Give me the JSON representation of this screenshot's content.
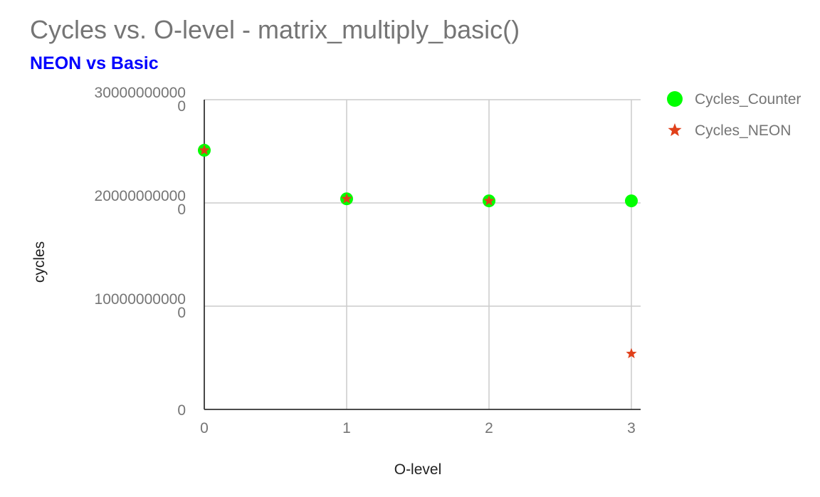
{
  "chart_data": {
    "type": "scatter",
    "title": "Cycles vs. O-level - matrix_multiply_basic()",
    "subtitle": "NEON vs Basic",
    "xlabel": "O-level",
    "ylabel": "cycles",
    "x_ticks": [
      "0",
      "1",
      "2",
      "3"
    ],
    "y_ticks": [
      {
        "value": 0,
        "lines": [
          "0"
        ]
      },
      {
        "value": 100000000000,
        "lines": [
          "10000000000",
          "0"
        ]
      },
      {
        "value": 200000000000,
        "lines": [
          "20000000000",
          "0"
        ]
      },
      {
        "value": 300000000000,
        "lines": [
          "30000000000",
          "0"
        ]
      }
    ],
    "xlim": [
      0,
      3
    ],
    "ylim": [
      0,
      300000000000
    ],
    "grid": true,
    "legend_position": "top-right",
    "colors": {
      "Cycles_Counter": "#00ff00",
      "Cycles_NEON": "#e0401a"
    },
    "series": [
      {
        "name": "Cycles_Counter",
        "marker": "circle",
        "x": [
          0,
          1,
          2,
          3
        ],
        "y": [
          251000000000,
          204000000000,
          202000000000,
          202000000000
        ]
      },
      {
        "name": "Cycles_NEON",
        "marker": "star",
        "x": [
          0,
          1,
          2
        ],
        "y": [
          251000000000,
          204000000000,
          202000000000
        ]
      },
      {
        "name": "Cycles_NEON",
        "marker": "star",
        "x": [
          3
        ],
        "y": [
          54000000000
        ]
      }
    ]
  }
}
